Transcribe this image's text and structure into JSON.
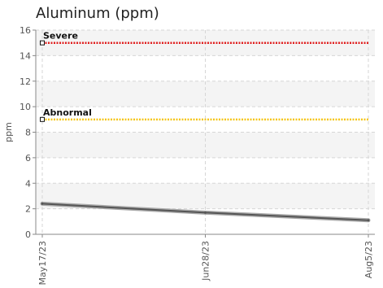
{
  "chart_data": {
    "type": "line",
    "title": "Aluminum (ppm)",
    "ylabel": "ppm",
    "xlabel": "",
    "ylim": [
      0,
      16
    ],
    "yticks": [
      0,
      2,
      4,
      6,
      8,
      10,
      12,
      14,
      16
    ],
    "x": [
      "May17/23",
      "Jun28/23",
      "Aug5/23"
    ],
    "grid": true,
    "series": [
      {
        "values": [
          2.4,
          1.7,
          1.1
        ],
        "color": "#555555"
      }
    ],
    "thresholds": [
      {
        "label": "Severe",
        "value": 15,
        "color": "#e02020"
      },
      {
        "label": "Abnormal",
        "value": 9,
        "color": "#f5c518"
      }
    ]
  }
}
